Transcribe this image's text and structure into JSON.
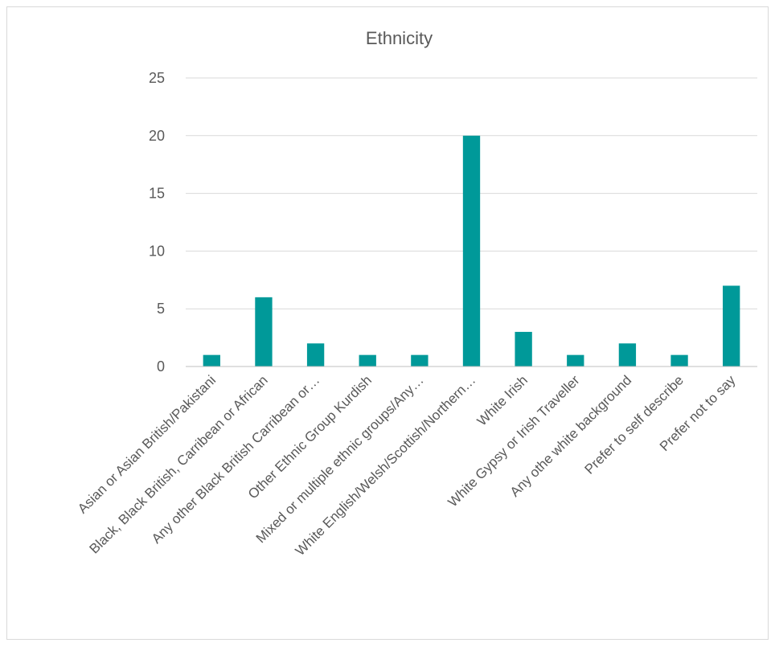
{
  "chart_data": {
    "type": "bar",
    "title": "Ethnicity",
    "xlabel": "",
    "ylabel": "",
    "categories": [
      "Asian or Asian British/Pakistani",
      "Black, Black British, Carribean or African",
      "Any other Black British Carribean or…",
      "Other Ethnic Group Kurdish",
      "Mixed or multiple ethnic groups/Any…",
      "White English/Welsh/Scottish/Northern…",
      "White Irish",
      "White Gypsy or Irish Traveller",
      "Any othe white background",
      "Prefer to self describe",
      "Prefer not to say"
    ],
    "values": [
      1,
      6,
      2,
      1,
      1,
      20,
      3,
      1,
      2,
      1,
      7
    ],
    "ylim": [
      0,
      25
    ],
    "yticks": [
      0,
      5,
      10,
      15,
      20,
      25
    ],
    "grid": true,
    "legend": "none",
    "bar_color": "#009999"
  }
}
